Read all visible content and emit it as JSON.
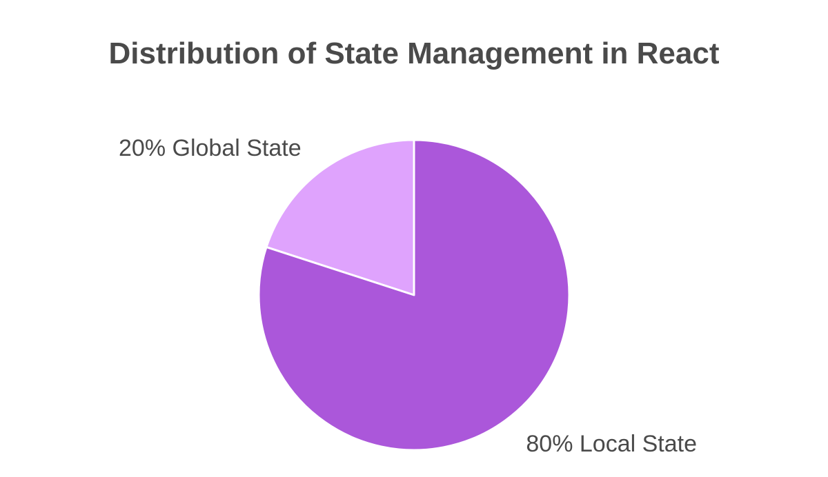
{
  "chart_data": {
    "type": "pie",
    "title": "Distribution of State Management in React",
    "categories": [
      "Global State",
      "Local State"
    ],
    "values": [
      20,
      80
    ],
    "labels": [
      "20% Global State",
      "80% Local State"
    ],
    "colors": [
      "#dfa3fd",
      "#ab57da"
    ],
    "start_angle_deg": 0,
    "direction": "counterclockwise"
  }
}
